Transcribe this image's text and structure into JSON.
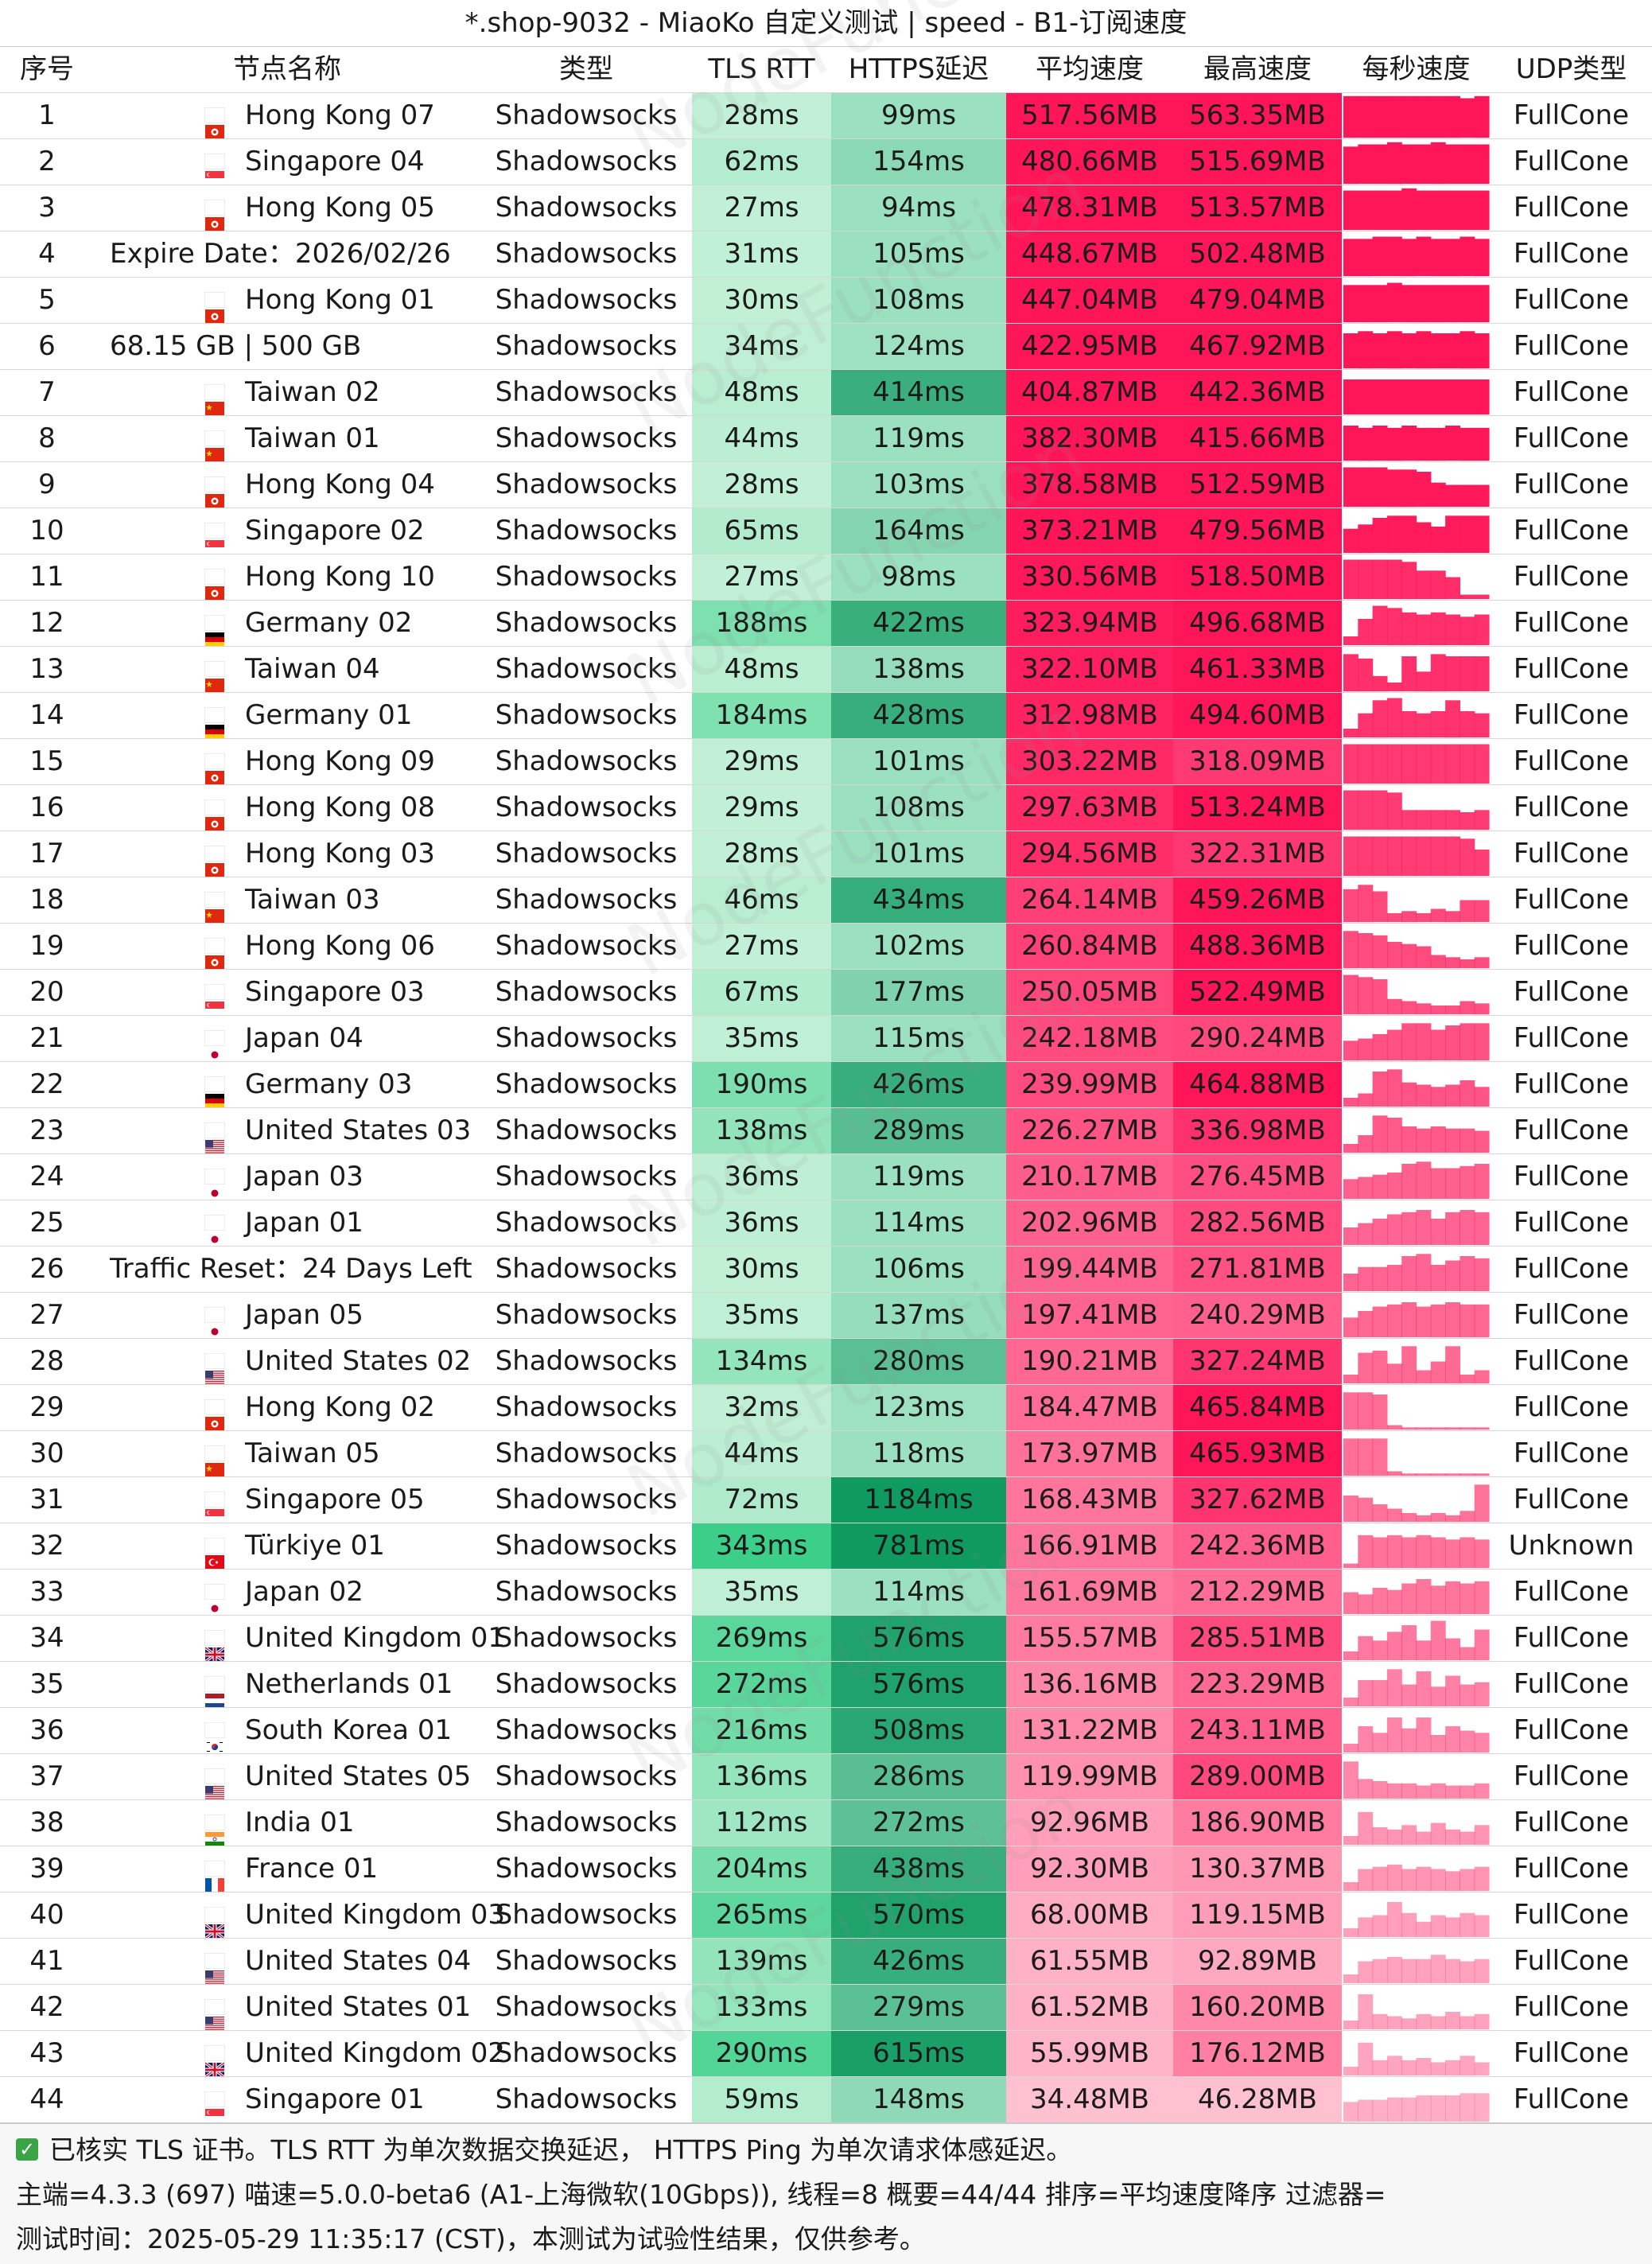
{
  "title": "*.shop-9032 - MiaoKo 自定义测试 | speed - B1-订阅速度",
  "watermark": "NodeFunction",
  "headers": [
    "序号",
    "节点名称",
    "类型",
    "TLS RTT",
    "HTTPS延迟",
    "平均速度",
    "最高速度",
    "每秒速度",
    "UDP类型"
  ],
  "rows": [
    {
      "idx": "1",
      "flag": "hk",
      "name": "Hong Kong 07",
      "type": "Shadowsocks",
      "tls": "28ms",
      "https": "99ms",
      "avg": "517.56MB",
      "max": "563.35MB",
      "udp": "FullCone",
      "spark": [
        0.95,
        0.95,
        0.95,
        0.95,
        0.95,
        0.95,
        0.95,
        0.95,
        0.9,
        0.95
      ]
    },
    {
      "idx": "2",
      "flag": "sg",
      "name": "Singapore 04",
      "type": "Shadowsocks",
      "tls": "62ms",
      "https": "154ms",
      "avg": "480.66MB",
      "max": "515.69MB",
      "udp": "FullCone",
      "spark": [
        0.85,
        0.9,
        0.9,
        0.95,
        0.9,
        0.9,
        0.95,
        0.9,
        0.9,
        0.9
      ]
    },
    {
      "idx": "3",
      "flag": "hk",
      "name": "Hong Kong 05",
      "type": "Shadowsocks",
      "tls": "27ms",
      "https": "94ms",
      "avg": "478.31MB",
      "max": "513.57MB",
      "udp": "FullCone",
      "spark": [
        0.9,
        0.9,
        0.9,
        0.9,
        0.95,
        0.9,
        0.9,
        0.9,
        0.9,
        0.9
      ]
    },
    {
      "idx": "4",
      "flag": "",
      "name": "Expire Date：2026/02/26",
      "type": "Shadowsocks",
      "tls": "31ms",
      "https": "105ms",
      "avg": "448.67MB",
      "max": "502.48MB",
      "udp": "FullCone",
      "spark": [
        0.85,
        0.85,
        0.9,
        0.9,
        0.85,
        0.9,
        0.85,
        0.85,
        0.9,
        0.85
      ]
    },
    {
      "idx": "5",
      "flag": "hk",
      "name": "Hong Kong 01",
      "type": "Shadowsocks",
      "tls": "30ms",
      "https": "108ms",
      "avg": "447.04MB",
      "max": "479.04MB",
      "udp": "FullCone",
      "spark": [
        0.85,
        0.85,
        0.85,
        0.9,
        0.85,
        0.85,
        0.85,
        0.85,
        0.85,
        0.85
      ]
    },
    {
      "idx": "6",
      "flag": "",
      "name": "68.15 GB | 500 GB",
      "type": "Shadowsocks",
      "tls": "34ms",
      "https": "124ms",
      "avg": "422.95MB",
      "max": "467.92MB",
      "udp": "FullCone",
      "spark": [
        0.8,
        0.85,
        0.8,
        0.85,
        0.8,
        0.85,
        0.8,
        0.8,
        0.85,
        0.8
      ]
    },
    {
      "idx": "7",
      "flag": "cn",
      "name": "Taiwan 02",
      "type": "Shadowsocks",
      "tls": "48ms",
      "https": "414ms",
      "avg": "404.87MB",
      "max": "442.36MB",
      "udp": "FullCone",
      "spark": [
        0.8,
        0.8,
        0.8,
        0.8,
        0.8,
        0.8,
        0.8,
        0.8,
        0.8,
        0.8
      ]
    },
    {
      "idx": "8",
      "flag": "cn",
      "name": "Taiwan 01",
      "type": "Shadowsocks",
      "tls": "44ms",
      "https": "119ms",
      "avg": "382.30MB",
      "max": "415.66MB",
      "udp": "FullCone",
      "spark": [
        0.8,
        0.75,
        0.8,
        0.75,
        0.8,
        0.75,
        0.75,
        0.8,
        0.75,
        0.75
      ]
    },
    {
      "idx": "9",
      "flag": "hk",
      "name": "Hong Kong 04",
      "type": "Shadowsocks",
      "tls": "28ms",
      "https": "103ms",
      "avg": "378.58MB",
      "max": "512.59MB",
      "udp": "FullCone",
      "spark": [
        0.9,
        0.9,
        0.9,
        0.85,
        0.85,
        0.8,
        0.55,
        0.5,
        0.5,
        0.5
      ]
    },
    {
      "idx": "10",
      "flag": "sg",
      "name": "Singapore 02",
      "type": "Shadowsocks",
      "tls": "65ms",
      "https": "164ms",
      "avg": "373.21MB",
      "max": "479.56MB",
      "udp": "FullCone",
      "spark": [
        0.55,
        0.65,
        0.8,
        0.85,
        0.85,
        0.7,
        0.6,
        0.85,
        0.85,
        0.85
      ]
    },
    {
      "idx": "11",
      "flag": "hk",
      "name": "Hong Kong 10",
      "type": "Shadowsocks",
      "tls": "27ms",
      "https": "98ms",
      "avg": "330.56MB",
      "max": "518.50MB",
      "udp": "FullCone",
      "spark": [
        0.9,
        0.9,
        0.9,
        0.9,
        0.85,
        0.65,
        0.65,
        0.5,
        0.1,
        0.1
      ]
    },
    {
      "idx": "12",
      "flag": "de",
      "name": "Germany 02",
      "type": "Shadowsocks",
      "tls": "188ms",
      "https": "422ms",
      "avg": "323.94MB",
      "max": "496.68MB",
      "udp": "FullCone",
      "spark": [
        0.2,
        0.6,
        0.9,
        0.85,
        0.75,
        0.7,
        0.75,
        0.7,
        0.65,
        0.7
      ]
    },
    {
      "idx": "13",
      "flag": "cn",
      "name": "Taiwan 04",
      "type": "Shadowsocks",
      "tls": "48ms",
      "https": "138ms",
      "avg": "322.10MB",
      "max": "461.33MB",
      "udp": "FullCone",
      "spark": [
        0.85,
        0.75,
        0.35,
        0.2,
        0.8,
        0.45,
        0.85,
        0.8,
        0.8,
        0.8
      ]
    },
    {
      "idx": "14",
      "flag": "de",
      "name": "Germany 01",
      "type": "Shadowsocks",
      "tls": "184ms",
      "https": "428ms",
      "avg": "312.98MB",
      "max": "494.60MB",
      "udp": "FullCone",
      "spark": [
        0.2,
        0.55,
        0.85,
        0.9,
        0.6,
        0.55,
        0.6,
        0.85,
        0.6,
        0.55
      ]
    },
    {
      "idx": "15",
      "flag": "hk",
      "name": "Hong Kong 09",
      "type": "Shadowsocks",
      "tls": "29ms",
      "https": "101ms",
      "avg": "303.22MB",
      "max": "318.09MB",
      "udp": "FullCone",
      "spark": [
        0.9,
        0.9,
        0.9,
        0.9,
        0.9,
        0.9,
        0.9,
        0.9,
        0.9,
        0.9
      ]
    },
    {
      "idx": "16",
      "flag": "hk",
      "name": "Hong Kong 08",
      "type": "Shadowsocks",
      "tls": "29ms",
      "https": "108ms",
      "avg": "297.63MB",
      "max": "513.24MB",
      "udp": "FullCone",
      "spark": [
        0.9,
        0.9,
        0.9,
        0.85,
        0.45,
        0.45,
        0.45,
        0.45,
        0.4,
        0.45
      ]
    },
    {
      "idx": "17",
      "flag": "hk",
      "name": "Hong Kong 03",
      "type": "Shadowsocks",
      "tls": "28ms",
      "https": "101ms",
      "avg": "294.56MB",
      "max": "322.31MB",
      "udp": "FullCone",
      "spark": [
        0.9,
        0.9,
        0.9,
        0.9,
        0.9,
        0.9,
        0.9,
        0.9,
        0.85,
        0.6
      ]
    },
    {
      "idx": "18",
      "flag": "cn",
      "name": "Taiwan 03",
      "type": "Shadowsocks",
      "tls": "46ms",
      "https": "434ms",
      "avg": "264.14MB",
      "max": "459.26MB",
      "udp": "FullCone",
      "spark": [
        0.75,
        0.85,
        0.7,
        0.2,
        0.25,
        0.2,
        0.3,
        0.25,
        0.5,
        0.5
      ]
    },
    {
      "idx": "19",
      "flag": "hk",
      "name": "Hong Kong 06",
      "type": "Shadowsocks",
      "tls": "27ms",
      "https": "102ms",
      "avg": "260.84MB",
      "max": "488.36MB",
      "udp": "FullCone",
      "spark": [
        0.85,
        0.8,
        0.75,
        0.6,
        0.55,
        0.5,
        0.3,
        0.25,
        0.2,
        0.25
      ]
    },
    {
      "idx": "20",
      "flag": "sg",
      "name": "Singapore 03",
      "type": "Shadowsocks",
      "tls": "67ms",
      "https": "177ms",
      "avg": "250.05MB",
      "max": "522.49MB",
      "udp": "FullCone",
      "spark": [
        0.9,
        0.85,
        0.8,
        0.35,
        0.3,
        0.25,
        0.2,
        0.2,
        0.3,
        0.25
      ]
    },
    {
      "idx": "21",
      "flag": "jp",
      "name": "Japan 04",
      "type": "Shadowsocks",
      "tls": "35ms",
      "https": "115ms",
      "avg": "242.18MB",
      "max": "290.24MB",
      "udp": "FullCone",
      "spark": [
        0.45,
        0.5,
        0.6,
        0.7,
        0.85,
        0.85,
        0.7,
        0.8,
        0.85,
        0.85
      ]
    },
    {
      "idx": "22",
      "flag": "de",
      "name": "Germany 03",
      "type": "Shadowsocks",
      "tls": "190ms",
      "https": "426ms",
      "avg": "239.99MB",
      "max": "464.88MB",
      "udp": "FullCone",
      "spark": [
        0.2,
        0.3,
        0.8,
        0.85,
        0.55,
        0.5,
        0.45,
        0.5,
        0.6,
        0.45
      ]
    },
    {
      "idx": "23",
      "flag": "us",
      "name": "United States 03",
      "type": "Shadowsocks",
      "tls": "138ms",
      "https": "289ms",
      "avg": "226.27MB",
      "max": "336.98MB",
      "udp": "FullCone",
      "spark": [
        0.2,
        0.4,
        0.85,
        0.8,
        0.6,
        0.55,
        0.6,
        0.55,
        0.55,
        0.5
      ]
    },
    {
      "idx": "24",
      "flag": "jp",
      "name": "Japan 03",
      "type": "Shadowsocks",
      "tls": "36ms",
      "https": "119ms",
      "avg": "210.17MB",
      "max": "276.45MB",
      "udp": "FullCone",
      "spark": [
        0.45,
        0.5,
        0.55,
        0.6,
        0.8,
        0.85,
        0.7,
        0.7,
        0.75,
        0.8
      ]
    },
    {
      "idx": "25",
      "flag": "jp",
      "name": "Japan 01",
      "type": "Shadowsocks",
      "tls": "36ms",
      "https": "114ms",
      "avg": "202.96MB",
      "max": "282.56MB",
      "udp": "FullCone",
      "spark": [
        0.4,
        0.5,
        0.6,
        0.7,
        0.75,
        0.8,
        0.6,
        0.75,
        0.8,
        0.75
      ]
    },
    {
      "idx": "26",
      "flag": "",
      "name": "Traffic Reset：24 Days Left",
      "type": "Shadowsocks",
      "tls": "30ms",
      "https": "106ms",
      "avg": "199.44MB",
      "max": "271.81MB",
      "udp": "FullCone",
      "spark": [
        0.4,
        0.55,
        0.55,
        0.6,
        0.8,
        0.85,
        0.6,
        0.7,
        0.8,
        0.75
      ]
    },
    {
      "idx": "27",
      "flag": "jp",
      "name": "Japan 05",
      "type": "Shadowsocks",
      "tls": "35ms",
      "https": "137ms",
      "avg": "197.41MB",
      "max": "240.29MB",
      "udp": "FullCone",
      "spark": [
        0.45,
        0.6,
        0.7,
        0.75,
        0.8,
        0.7,
        0.75,
        0.8,
        0.75,
        0.75
      ]
    },
    {
      "idx": "28",
      "flag": "us",
      "name": "United States 02",
      "type": "Shadowsocks",
      "tls": "134ms",
      "https": "280ms",
      "avg": "190.21MB",
      "max": "327.24MB",
      "udp": "FullCone",
      "spark": [
        0.2,
        0.7,
        0.75,
        0.45,
        0.85,
        0.3,
        0.5,
        0.85,
        0.2,
        0.3
      ]
    },
    {
      "idx": "29",
      "flag": "hk",
      "name": "Hong Kong 02",
      "type": "Shadowsocks",
      "tls": "32ms",
      "https": "123ms",
      "avg": "184.47MB",
      "max": "465.84MB",
      "udp": "FullCone",
      "spark": [
        0.85,
        0.85,
        0.8,
        0.1,
        0.05,
        0.05,
        0.05,
        0.05,
        0.05,
        0.05
      ]
    },
    {
      "idx": "30",
      "flag": "cn",
      "name": "Taiwan 05",
      "type": "Shadowsocks",
      "tls": "44ms",
      "https": "118ms",
      "avg": "173.97MB",
      "max": "465.93MB",
      "udp": "FullCone",
      "spark": [
        0.85,
        0.85,
        0.85,
        0.1,
        0.05,
        0.05,
        0.05,
        0.05,
        0.05,
        0.05
      ]
    },
    {
      "idx": "31",
      "flag": "sg",
      "name": "Singapore 05",
      "type": "Shadowsocks",
      "tls": "72ms",
      "https": "1184ms",
      "avg": "168.43MB",
      "max": "327.62MB",
      "udp": "FullCone",
      "spark": [
        0.6,
        0.55,
        0.4,
        0.3,
        0.2,
        0.15,
        0.2,
        0.15,
        0.25,
        0.85
      ]
    },
    {
      "idx": "32",
      "flag": "tr",
      "name": "Türkiye 01",
      "type": "Shadowsocks",
      "tls": "343ms",
      "https": "781ms",
      "avg": "166.91MB",
      "max": "242.36MB",
      "udp": "Unknown",
      "spark": [
        0.1,
        0.75,
        0.7,
        0.75,
        0.7,
        0.75,
        0.7,
        0.65,
        0.7,
        0.65
      ]
    },
    {
      "idx": "33",
      "flag": "jp",
      "name": "Japan 02",
      "type": "Shadowsocks",
      "tls": "35ms",
      "https": "114ms",
      "avg": "161.69MB",
      "max": "212.29MB",
      "udp": "FullCone",
      "spark": [
        0.5,
        0.45,
        0.6,
        0.55,
        0.7,
        0.8,
        0.65,
        0.75,
        0.7,
        0.75
      ]
    },
    {
      "idx": "34",
      "flag": "gb",
      "name": "United Kingdom 01",
      "type": "Shadowsocks",
      "tls": "269ms",
      "https": "576ms",
      "avg": "155.57MB",
      "max": "285.51MB",
      "udp": "FullCone",
      "spark": [
        0.2,
        0.55,
        0.45,
        0.65,
        0.8,
        0.45,
        0.9,
        0.5,
        0.3,
        0.7
      ]
    },
    {
      "idx": "35",
      "flag": "nl",
      "name": "Netherlands 01",
      "type": "Shadowsocks",
      "tls": "272ms",
      "https": "576ms",
      "avg": "136.16MB",
      "max": "223.29MB",
      "udp": "FullCone",
      "spark": [
        0.2,
        0.6,
        0.6,
        0.85,
        0.5,
        0.8,
        0.45,
        0.7,
        0.5,
        0.55
      ]
    },
    {
      "idx": "36",
      "flag": "kr",
      "name": "South Korea 01",
      "type": "Shadowsocks",
      "tls": "216ms",
      "https": "508ms",
      "avg": "131.22MB",
      "max": "243.11MB",
      "udp": "FullCone",
      "spark": [
        0.2,
        0.6,
        0.45,
        0.8,
        0.55,
        0.8,
        0.4,
        0.6,
        0.5,
        0.45
      ]
    },
    {
      "idx": "37",
      "flag": "us",
      "name": "United States 05",
      "type": "Shadowsocks",
      "tls": "136ms",
      "https": "286ms",
      "avg": "119.99MB",
      "max": "289.00MB",
      "udp": "FullCone",
      "spark": [
        0.85,
        0.45,
        0.4,
        0.35,
        0.35,
        0.3,
        0.35,
        0.3,
        0.3,
        0.35
      ]
    },
    {
      "idx": "38",
      "flag": "in",
      "name": "India 01",
      "type": "Shadowsocks",
      "tls": "112ms",
      "https": "272ms",
      "avg": "92.96MB",
      "max": "186.90MB",
      "udp": "FullCone",
      "spark": [
        0.2,
        0.75,
        0.4,
        0.35,
        0.45,
        0.3,
        0.5,
        0.35,
        0.3,
        0.45
      ]
    },
    {
      "idx": "39",
      "flag": "fr",
      "name": "France 01",
      "type": "Shadowsocks",
      "tls": "204ms",
      "https": "438ms",
      "avg": "92.30MB",
      "max": "130.37MB",
      "udp": "FullCone",
      "spark": [
        0.2,
        0.5,
        0.55,
        0.6,
        0.5,
        0.55,
        0.5,
        0.45,
        0.5,
        0.55
      ]
    },
    {
      "idx": "40",
      "flag": "gb",
      "name": "United Kingdom 03",
      "type": "Shadowsocks",
      "tls": "265ms",
      "https": "570ms",
      "avg": "68.00MB",
      "max": "119.15MB",
      "udp": "FullCone",
      "spark": [
        0.2,
        0.45,
        0.5,
        0.8,
        0.55,
        0.35,
        0.5,
        0.45,
        0.55,
        0.5
      ]
    },
    {
      "idx": "41",
      "flag": "us",
      "name": "United States 04",
      "type": "Shadowsocks",
      "tls": "139ms",
      "https": "426ms",
      "avg": "61.55MB",
      "max": "92.89MB",
      "udp": "FullCone",
      "spark": [
        0.2,
        0.5,
        0.55,
        0.6,
        0.55,
        0.55,
        0.65,
        0.55,
        0.5,
        0.55
      ]
    },
    {
      "idx": "42",
      "flag": "us",
      "name": "United States 01",
      "type": "Shadowsocks",
      "tls": "133ms",
      "https": "279ms",
      "avg": "61.52MB",
      "max": "160.20MB",
      "udp": "FullCone",
      "spark": [
        0.2,
        0.8,
        0.35,
        0.3,
        0.25,
        0.35,
        0.3,
        0.4,
        0.3,
        0.35
      ]
    },
    {
      "idx": "43",
      "flag": "gb",
      "name": "United Kingdom 02",
      "type": "Shadowsocks",
      "tls": "290ms",
      "https": "615ms",
      "avg": "55.99MB",
      "max": "176.12MB",
      "udp": "FullCone",
      "spark": [
        0.2,
        0.75,
        0.35,
        0.45,
        0.35,
        0.4,
        0.3,
        0.35,
        0.45,
        0.3
      ]
    },
    {
      "idx": "44",
      "flag": "sg",
      "name": "Singapore 01",
      "type": "Shadowsocks",
      "tls": "59ms",
      "https": "148ms",
      "avg": "34.48MB",
      "max": "46.28MB",
      "udp": "FullCone",
      "spark": [
        0.45,
        0.5,
        0.5,
        0.55,
        0.55,
        0.6,
        0.6,
        0.6,
        0.65,
        0.65
      ]
    }
  ],
  "footer": {
    "line1": "已核实 TLS 证书。TLS RTT 为单次数据交换延迟， HTTPS Ping 为单次请求体感延迟。",
    "line2": "主端=4.3.3 (697) 喵速=5.0.0-beta6 (A1-上海微软(10Gbps)), 线程=8 概要=44/44 排序=平均速度降序 过滤器=",
    "line3": "测试时间：2025-05-29 11:35:17 (CST)，本测试为试验性结果，仅供参考。"
  },
  "colors": {
    "tls_light": "#c2f0d6",
    "tls_dark": "#3ccf8a",
    "https_light": "#b4ecd0",
    "https_dark": "#0f9a60",
    "speed_full": "#ff1659",
    "speed_light": "#ffc0d0",
    "spark": "#ff1659"
  },
  "flag_icons": {
    "hk": "hong-kong-flag-icon",
    "sg": "singapore-flag-icon",
    "cn": "china-flag-icon",
    "de": "germany-flag-icon",
    "jp": "japan-flag-icon",
    "us": "usa-flag-icon",
    "tr": "turkiye-flag-icon",
    "gb": "uk-flag-icon",
    "nl": "netherlands-flag-icon",
    "kr": "south-korea-flag-icon",
    "in": "india-flag-icon",
    "fr": "france-flag-icon"
  }
}
